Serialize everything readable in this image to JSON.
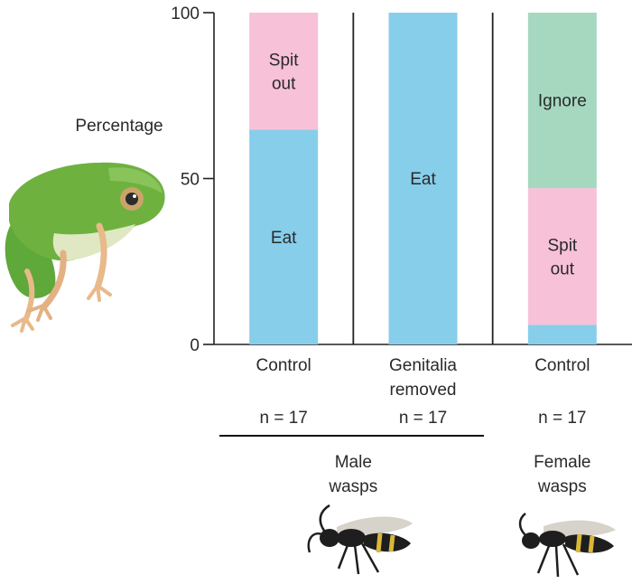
{
  "chart_data": {
    "type": "bar",
    "stacked": true,
    "ylabel": "Percentage",
    "ylim": [
      0,
      100
    ],
    "yticks": [
      0,
      50,
      100
    ],
    "categories": [
      "Control",
      "Genitalia removed",
      "Control"
    ],
    "category_lines": [
      [
        "Control"
      ],
      [
        "Genitalia",
        "removed"
      ],
      [
        "Control"
      ]
    ],
    "sample_sizes": [
      "n = 17",
      "n = 17",
      "n = 17"
    ],
    "groups": [
      {
        "label_lines": [
          "Male",
          "wasps"
        ],
        "categories": [
          0,
          1
        ],
        "underline": true
      },
      {
        "label_lines": [
          "Female",
          "wasps"
        ],
        "categories": [
          2
        ],
        "underline": false
      }
    ],
    "series": [
      {
        "name": "Eat",
        "color": "#87ceeb",
        "values": [
          64.7,
          100,
          5.9
        ]
      },
      {
        "name": "Spit out",
        "color": "#f7c1d8",
        "values": [
          35.3,
          0,
          41.2
        ]
      },
      {
        "name": "Ignore",
        "color": "#a6d8c0",
        "values": [
          0,
          0,
          52.9
        ]
      }
    ],
    "segment_labels": [
      {
        "category": 0,
        "series": 1,
        "lines": [
          "Spit",
          "out"
        ]
      },
      {
        "category": 0,
        "series": 0,
        "lines": [
          "Eat"
        ]
      },
      {
        "category": 1,
        "series": 0,
        "lines": [
          "Eat"
        ]
      },
      {
        "category": 2,
        "series": 2,
        "lines": [
          "Ignore"
        ]
      },
      {
        "category": 2,
        "series": 1,
        "lines": [
          "Spit",
          "out"
        ]
      }
    ],
    "grid": false,
    "legend": "none"
  },
  "illustrations": {
    "frog": "tree-frog-photo",
    "male_wasp": "wasp-photo",
    "female_wasp": "wasp-photo"
  }
}
